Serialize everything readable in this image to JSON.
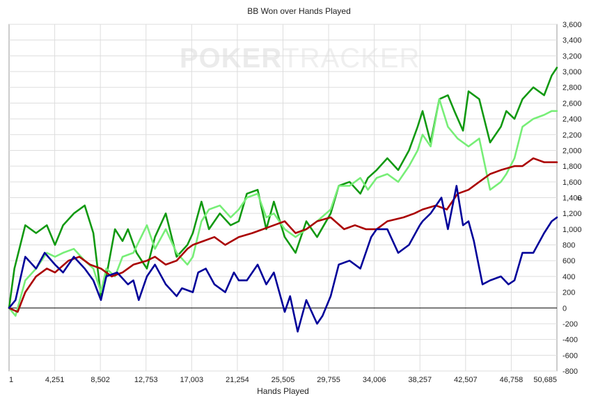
{
  "chart_data": {
    "type": "line",
    "title": "BB Won over Hands Played",
    "xlabel": "Hands Played",
    "ylabel": "#",
    "watermark": {
      "part1": "POKER",
      "part2": "TRACKER"
    },
    "xlim": [
      1,
      50685
    ],
    "ylim": [
      -800,
      3600
    ],
    "x_ticks": [
      "1",
      "4,251",
      "8,502",
      "12,753",
      "17,003",
      "21,254",
      "25,505",
      "29,755",
      "34,006",
      "38,257",
      "42,507",
      "46,758",
      "50,685"
    ],
    "y_ticks": [
      -800,
      -600,
      -400,
      -200,
      0,
      200,
      400,
      600,
      800,
      1000,
      1200,
      1400,
      1600,
      1800,
      2000,
      2200,
      2400,
      2600,
      2800,
      3000,
      3200,
      3400,
      3600
    ],
    "y_tick_labels": [
      "-800",
      "-600",
      "-400",
      "-200",
      "0",
      "200",
      "400",
      "600",
      "800",
      "1,000",
      "1,200",
      "1,400",
      "1,600",
      "1,800",
      "2,000",
      "2,200",
      "2,400",
      "2,600",
      "2,800",
      "3,000",
      "3,200",
      "3,400",
      "3,600"
    ],
    "grid": true,
    "legend": "none",
    "colors": {
      "dark_green": "#119911",
      "light_green": "#77ee77",
      "red": "#aa0000",
      "blue": "#000099",
      "zero_line": "#000000",
      "grid": "#dddddd"
    },
    "series": [
      {
        "color": "#119911",
        "x": [
          1,
          500,
          1500,
          2500,
          3500,
          4251,
          5000,
          6000,
          7000,
          7800,
          8502,
          9000,
          9800,
          10500,
          11000,
          11800,
          12753,
          13500,
          14500,
          15500,
          16500,
          17003,
          17800,
          18500,
          19500,
          20500,
          21254,
          22000,
          23000,
          23800,
          24500,
          25505,
          26500,
          27500,
          28500,
          29755,
          30500,
          31500,
          32500,
          33200,
          34006,
          35000,
          36000,
          37000,
          37800,
          38257,
          39000,
          39800,
          40600,
          41200,
          42000,
          42507,
          43500,
          44500,
          45500,
          46000,
          46758,
          47500,
          48500,
          49500,
          50200,
          50685
        ],
        "y": [
          0,
          500,
          1050,
          950,
          1050,
          800,
          1050,
          1200,
          1300,
          950,
          150,
          400,
          1000,
          850,
          1000,
          700,
          500,
          900,
          1200,
          650,
          800,
          950,
          1350,
          1000,
          1200,
          1050,
          1100,
          1450,
          1500,
          1000,
          1350,
          900,
          700,
          1100,
          900,
          1200,
          1550,
          1600,
          1450,
          1650,
          1750,
          1900,
          1750,
          2000,
          2300,
          2500,
          2100,
          2650,
          2700,
          2500,
          2250,
          2750,
          2650,
          2100,
          2300,
          2500,
          2400,
          2650,
          2800,
          2700,
          2950,
          3050
        ]
      },
      {
        "color": "#77ee77",
        "x": [
          1,
          600,
          1500,
          2500,
          3500,
          4251,
          5000,
          6000,
          7000,
          7800,
          8502,
          9000,
          9800,
          10500,
          11500,
          12753,
          13500,
          14500,
          15500,
          16500,
          17003,
          17800,
          18500,
          19500,
          20500,
          21254,
          22000,
          23000,
          23800,
          24500,
          25505,
          26500,
          27500,
          28500,
          29755,
          30500,
          31500,
          32500,
          33200,
          34006,
          35000,
          36000,
          37000,
          37800,
          38257,
          39000,
          39800,
          40600,
          41500,
          42507,
          43500,
          44500,
          45500,
          46000,
          46758,
          47500,
          48500,
          49500,
          50200,
          50685
        ],
        "y": [
          0,
          -100,
          350,
          500,
          700,
          650,
          700,
          750,
          600,
          500,
          200,
          500,
          400,
          650,
          700,
          1050,
          750,
          1000,
          700,
          550,
          650,
          1100,
          1250,
          1300,
          1150,
          1250,
          1400,
          1450,
          1150,
          1200,
          1000,
          900,
          1000,
          1100,
          1250,
          1550,
          1550,
          1650,
          1500,
          1650,
          1700,
          1600,
          1800,
          2000,
          2200,
          2050,
          2650,
          2300,
          2150,
          2050,
          2150,
          1500,
          1600,
          1700,
          1900,
          2300,
          2400,
          2450,
          2500,
          2500
        ]
      },
      {
        "color": "#aa0000",
        "x": [
          1,
          800,
          1500,
          2500,
          3500,
          4251,
          5500,
          6500,
          7500,
          8502,
          9500,
          10500,
          11500,
          12753,
          13500,
          14500,
          15500,
          16500,
          17003,
          18000,
          19000,
          20000,
          21254,
          22500,
          23500,
          24500,
          25505,
          26500,
          27500,
          28500,
          29755,
          31000,
          32000,
          33000,
          34006,
          35000,
          36500,
          37500,
          38257,
          39500,
          40500,
          41500,
          42507,
          43500,
          44500,
          45500,
          46758,
          47500,
          48500,
          49500,
          50685
        ],
        "y": [
          0,
          -50,
          200,
          400,
          500,
          450,
          600,
          650,
          550,
          500,
          400,
          450,
          550,
          600,
          650,
          550,
          600,
          750,
          800,
          850,
          900,
          800,
          900,
          950,
          1000,
          1050,
          1100,
          950,
          1000,
          1100,
          1150,
          1000,
          1050,
          1000,
          1000,
          1100,
          1150,
          1200,
          1250,
          1300,
          1250,
          1450,
          1500,
          1600,
          1700,
          1750,
          1800,
          1800,
          1900,
          1850,
          1850
        ]
      },
      {
        "color": "#000099",
        "x": [
          1,
          600,
          1500,
          2500,
          3300,
          4251,
          5000,
          6000,
          7000,
          7800,
          8502,
          9000,
          10000,
          11000,
          11500,
          12000,
          12753,
          13500,
          14500,
          15500,
          16000,
          17003,
          17500,
          18200,
          19000,
          20000,
          20800,
          21254,
          22000,
          23000,
          23800,
          24500,
          25505,
          26000,
          26700,
          27500,
          28500,
          29000,
          29755,
          30500,
          31500,
          32500,
          33500,
          34006,
          35000,
          36000,
          37000,
          38000,
          38257,
          39000,
          40000,
          40600,
          41400,
          42000,
          42507,
          43000,
          43800,
          44500,
          45500,
          46200,
          46758,
          47500,
          48500,
          49500,
          50200,
          50685
        ],
        "y": [
          0,
          100,
          650,
          500,
          700,
          550,
          450,
          650,
          500,
          350,
          100,
          400,
          450,
          300,
          350,
          100,
          400,
          550,
          300,
          150,
          250,
          200,
          450,
          500,
          300,
          200,
          450,
          350,
          350,
          550,
          300,
          450,
          -50,
          150,
          -300,
          100,
          -200,
          -100,
          150,
          550,
          600,
          500,
          900,
          1000,
          1000,
          700,
          800,
          1050,
          1100,
          1200,
          1400,
          1000,
          1550,
          1050,
          1100,
          850,
          300,
          350,
          400,
          300,
          350,
          700,
          700,
          950,
          1100,
          1150
        ]
      }
    ]
  }
}
